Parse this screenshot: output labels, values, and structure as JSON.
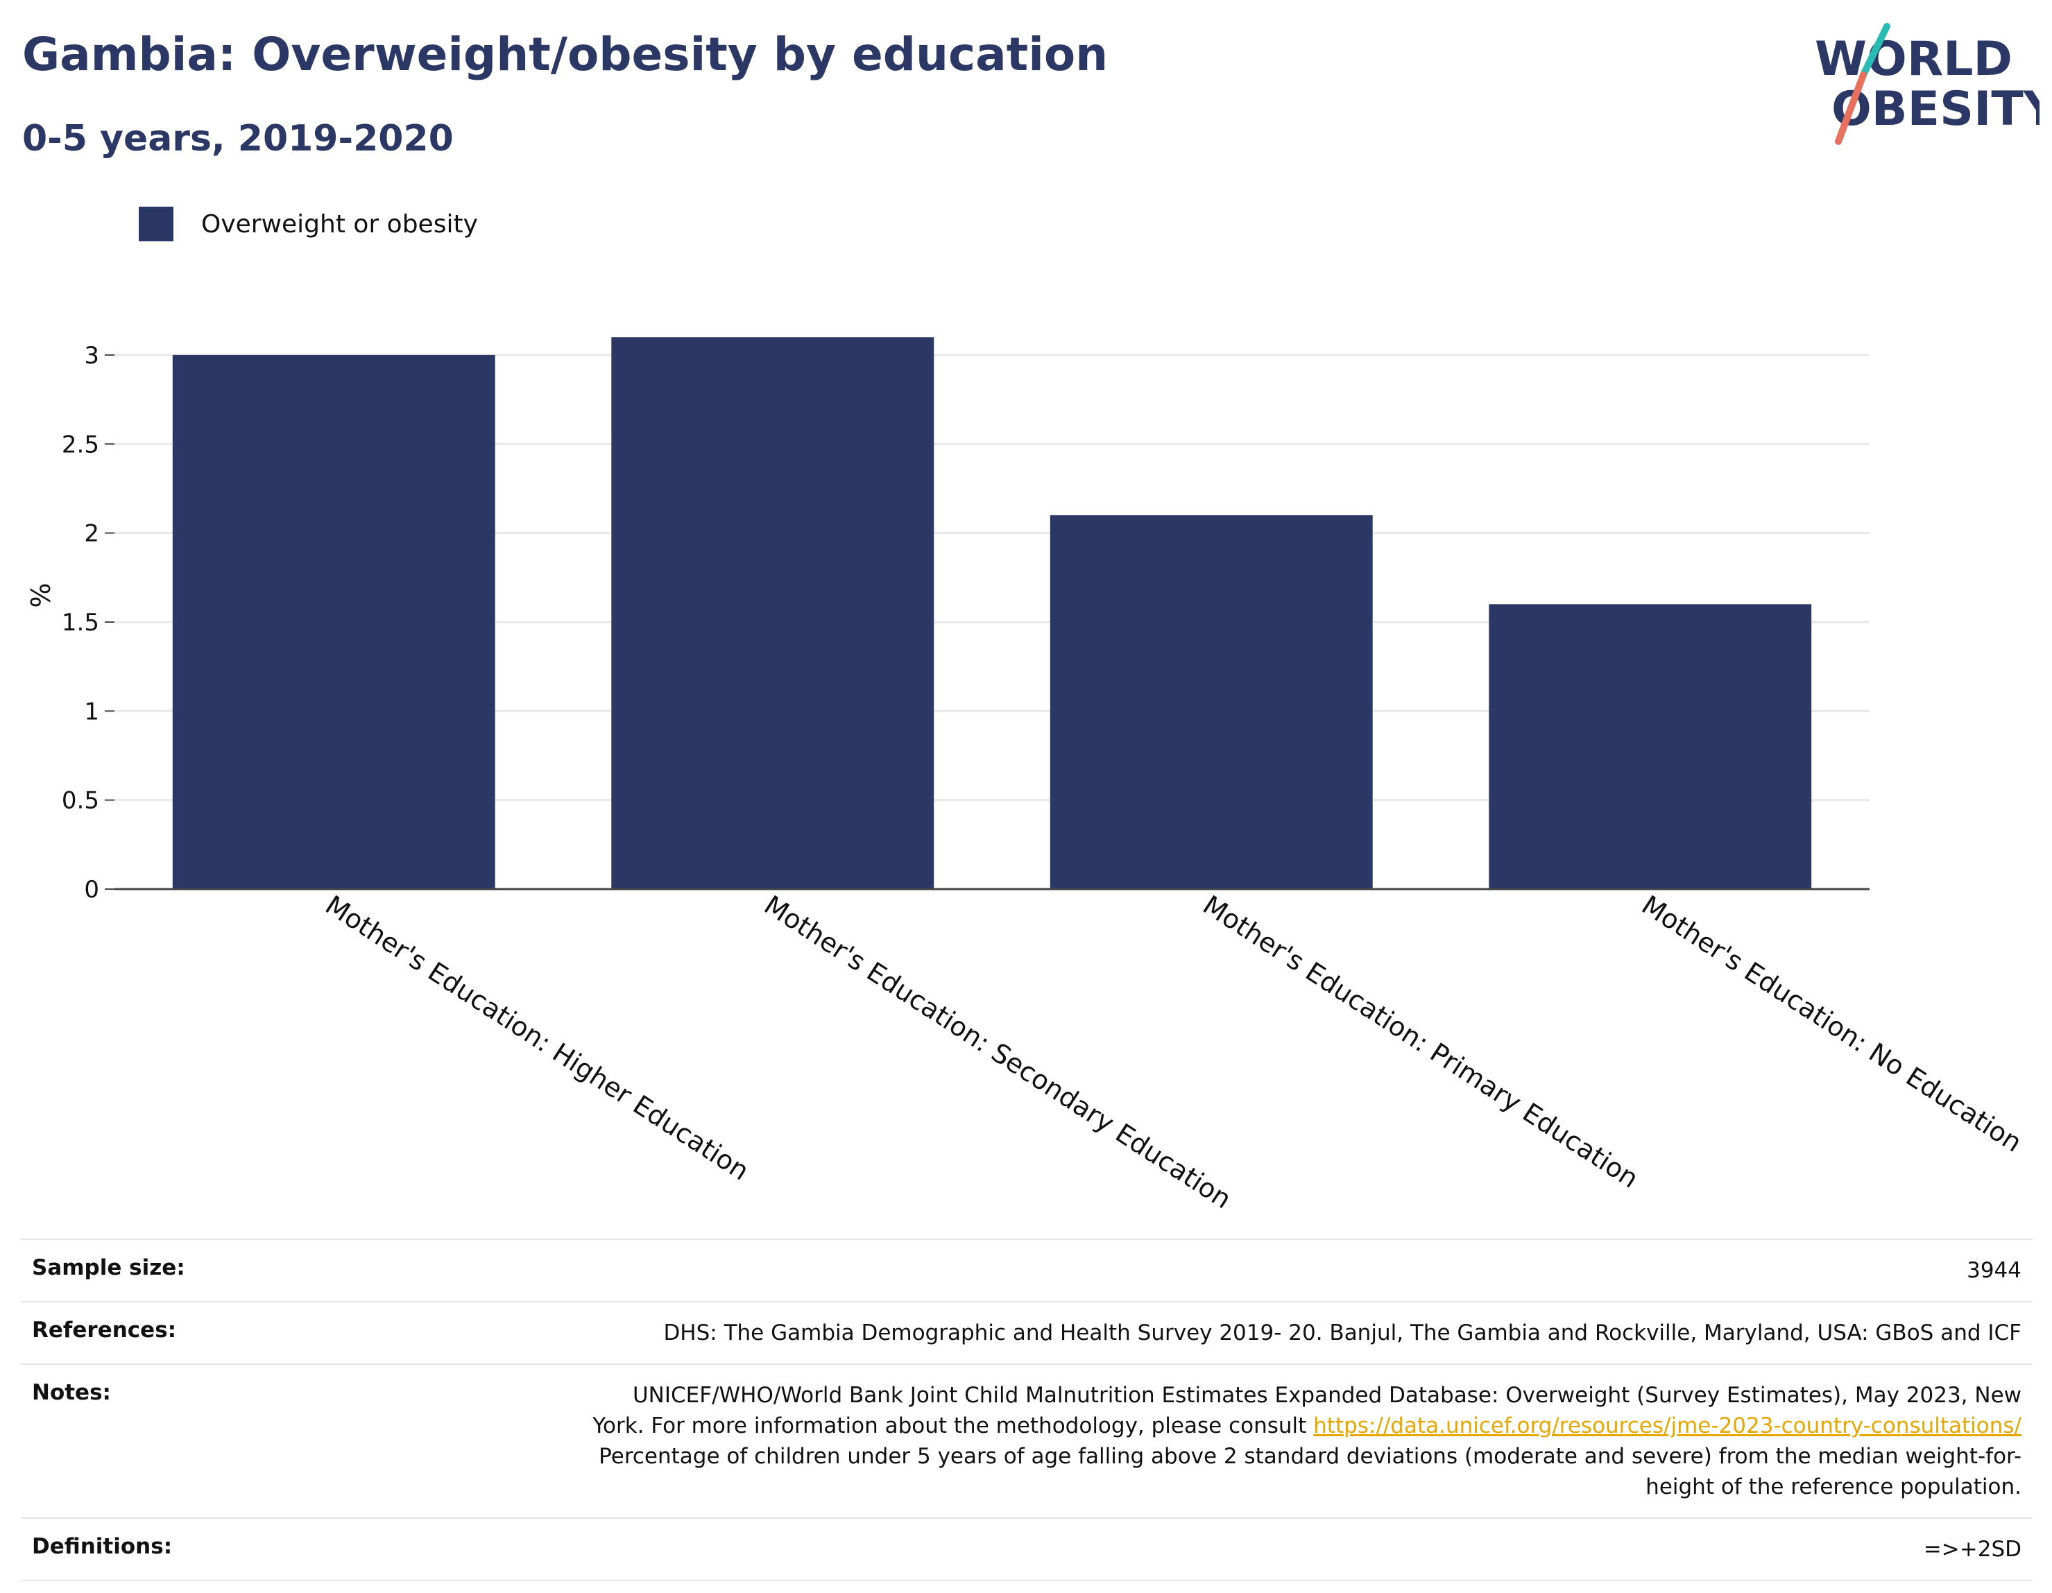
{
  "header": {
    "title": "Gambia: Overweight/obesity by education",
    "subtitle": "0-5 years, 2019-2020"
  },
  "logo": {
    "line1": "WORLD",
    "line2": "OBESITY",
    "accent_teal": "#2bbbb5",
    "accent_coral": "#e8705f"
  },
  "colors": {
    "bar": "#2b3764",
    "title": "#2b3764",
    "link": "#e8a600"
  },
  "chart_data": {
    "type": "bar",
    "categories": [
      "Mother's Education: Higher Education",
      "Mother's Education: Secondary Education",
      "Mother's Education: Primary Education",
      "Mother's Education: No Education"
    ],
    "series": [
      {
        "name": "Overweight or obesity",
        "values": [
          3.0,
          3.1,
          2.1,
          1.6
        ]
      }
    ],
    "title": "Gambia: Overweight/obesity by education",
    "subtitle": "0-5 years, 2019-2020",
    "xlabel": "",
    "ylabel": "%",
    "ylim": [
      0,
      3.35
    ],
    "yticks": [
      0,
      0.5,
      1,
      1.5,
      2,
      2.5,
      3
    ],
    "ytick_labels": [
      "0",
      "0.5",
      "1",
      "1.5",
      "2",
      "2.5",
      "3"
    ],
    "grid": true,
    "legend_position": "top-left"
  },
  "info": {
    "sample_size": {
      "label": "Sample size:",
      "value": "3944"
    },
    "references": {
      "label": "References:",
      "value": "DHS: The Gambia Demographic and Health Survey 2019- 20. Banjul, The Gambia and Rockville, Maryland, USA: GBoS and ICF"
    },
    "notes": {
      "label": "Notes:",
      "line1": "UNICEF/WHO/World Bank Joint Child Malnutrition Estimates Expanded Database: Overweight (Survey Estimates), May 2023, New",
      "line2_prefix": "York. For more information about the methodology, please consult ",
      "link": "https://data.unicef.org/resources/jme-2023-country-consultations/",
      "line3": "Percentage of children under 5 years of age falling above 2 standard deviations (moderate and severe) from the median weight-for-",
      "line4": "height of the reference population."
    },
    "definitions": {
      "label": "Definitions:",
      "value": "=>+2SD"
    }
  }
}
